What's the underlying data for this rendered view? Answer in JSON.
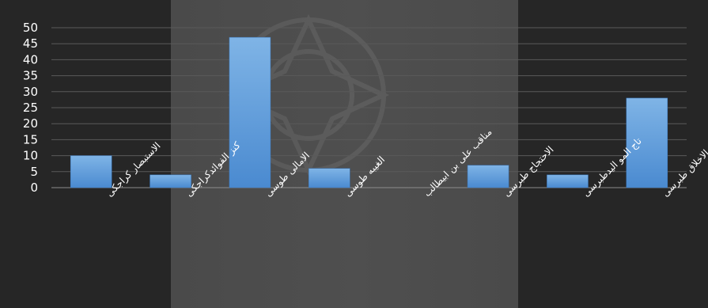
{
  "chart_data": {
    "type": "bar",
    "categories": [
      "الاستبصار کراجکی",
      "کنز الفوائدکراجکی",
      "الامالی طوسی",
      "الغیبه طوسی",
      "مناقب علی بن ابیطالب",
      "الاحتجاج طبرسی",
      "تاج المو الیدطبرسی",
      "مکارم الاخلاق طبرسی"
    ],
    "values": [
      10,
      4,
      47,
      6,
      0,
      7,
      4,
      28
    ],
    "ylim": [
      0,
      50
    ],
    "yticks": [
      0,
      5,
      10,
      15,
      20,
      25,
      30,
      35,
      40,
      45,
      50
    ],
    "grid": true,
    "colors": {
      "bar": "#5b9bd5",
      "grid": "#5a5a5a",
      "axis": "#8c8c8c",
      "text": "#ffffff"
    }
  }
}
